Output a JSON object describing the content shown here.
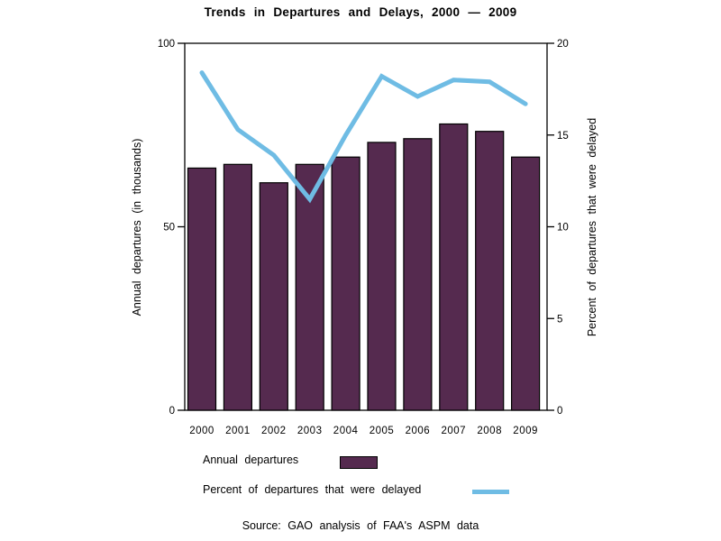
{
  "title": "Trends in Departures and Delays, 2000 — 2009",
  "source": "Source: GAO analysis of FAA's ASPM data",
  "colors": {
    "bar_fill": "#552A4F",
    "bar_stroke": "#000000",
    "line": "#6FBCE4",
    "axis": "#000000",
    "background": "#FFFFFF"
  },
  "legend": [
    {
      "label": "Annual departures",
      "swatch": "bar"
    },
    {
      "label": "Percent of departures that were delayed",
      "swatch": "line"
    }
  ],
  "chart_data": {
    "type": "combo",
    "categories": [
      "2000",
      "2001",
      "2002",
      "2003",
      "2004",
      "2005",
      "2006",
      "2007",
      "2008",
      "2009"
    ],
    "series": [
      {
        "name": "Annual departures",
        "type": "bar",
        "axis": "left",
        "values": [
          66,
          67,
          62,
          67,
          69,
          73,
          74,
          78,
          76,
          69
        ]
      },
      {
        "name": "Percent of departures that were delayed",
        "type": "line",
        "axis": "right",
        "values": [
          18.4,
          15.3,
          13.9,
          11.5,
          15.0,
          18.2,
          17.1,
          18.0,
          17.9,
          16.7
        ]
      }
    ],
    "left_axis": {
      "label": "Annual departures (in thousands)",
      "range": [
        0,
        100
      ],
      "ticks": [
        "0",
        "50",
        "100"
      ]
    },
    "right_axis": {
      "label": "Percent of departures that were delayed",
      "range": [
        0,
        20
      ],
      "ticks": [
        "0",
        "5",
        "10",
        "15",
        "20"
      ]
    },
    "grid": false,
    "legend_position": "bottom-left"
  }
}
